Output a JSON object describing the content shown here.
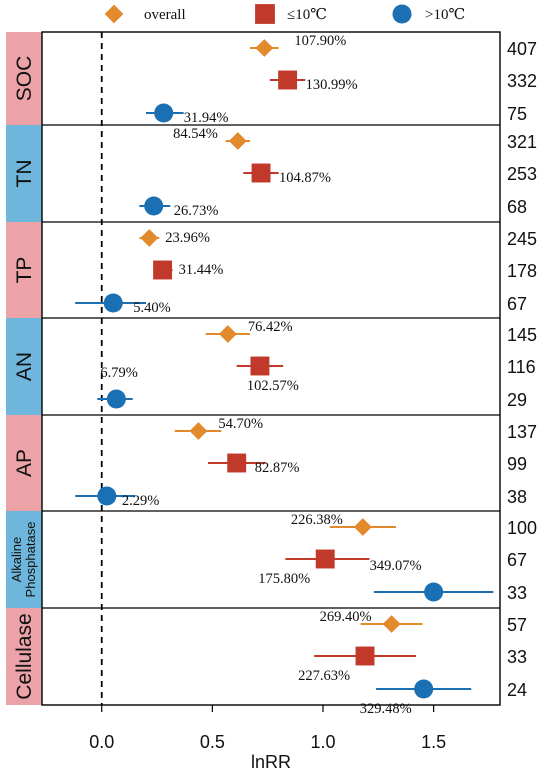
{
  "chart_data": {
    "type": "scatter",
    "xlabel": "lnRR",
    "xlim": [
      -0.27,
      1.8
    ],
    "x_ticks": [
      "0.0",
      "0.5",
      "1.0",
      "1.5"
    ],
    "x_tick_values": [
      0,
      0.5,
      1.0,
      1.5
    ],
    "legend": [
      {
        "name": "overall",
        "marker": "diamond",
        "color": "#E38B2C"
      },
      {
        "name": "≤10℃",
        "marker": "square",
        "color": "#C0392B"
      },
      {
        "name": ">10℃",
        "marker": "circle",
        "color": "#1B6FB3"
      }
    ],
    "reference_line": 0,
    "groups": [
      {
        "label": "SOC",
        "band_color": "#EBA3A8",
        "label_lines": [
          "SOC"
        ],
        "rows": [
          {
            "series": "overall",
            "value": 0.735,
            "ci": [
              0.67,
              0.8
            ],
            "label": "107.90%",
            "n": "407"
          },
          {
            "series": "≤10℃",
            "value": 0.84,
            "ci": [
              0.76,
              0.92
            ],
            "label": "130.99%",
            "n": "332"
          },
          {
            "series": ">10℃",
            "value": 0.28,
            "ci": [
              0.2,
              0.37
            ],
            "label": "31.94%",
            "n": "75"
          }
        ]
      },
      {
        "label": "TN",
        "band_color": "#6FB6DC",
        "label_lines": [
          "TN"
        ],
        "rows": [
          {
            "series": "overall",
            "value": 0.615,
            "ci": [
              0.56,
              0.67
            ],
            "label": "84.54%",
            "n": "321"
          },
          {
            "series": "≤10℃",
            "value": 0.72,
            "ci": [
              0.64,
              0.8
            ],
            "label": "104.87%",
            "n": "253"
          },
          {
            "series": ">10℃",
            "value": 0.235,
            "ci": [
              0.17,
              0.31
            ],
            "label": "26.73%",
            "n": "68"
          }
        ]
      },
      {
        "label": "TP",
        "band_color": "#EBA3A8",
        "label_lines": [
          "TP"
        ],
        "rows": [
          {
            "series": "overall",
            "value": 0.215,
            "ci": [
              0.17,
              0.26
            ],
            "label": "23.96%",
            "n": "245"
          },
          {
            "series": "≤10℃",
            "value": 0.275,
            "ci": [
              0.24,
              0.32
            ],
            "label": "31.44%",
            "n": "178"
          },
          {
            "series": ">10℃",
            "value": 0.052,
            "ci": [
              -0.12,
              0.2
            ],
            "label": "5.40%",
            "n": "67"
          }
        ]
      },
      {
        "label": "AN",
        "band_color": "#6FB6DC",
        "label_lines": [
          "AN"
        ],
        "rows": [
          {
            "series": "overall",
            "value": 0.57,
            "ci": [
              0.47,
              0.67
            ],
            "label": "76.42%",
            "n": "145"
          },
          {
            "series": "≤10℃",
            "value": 0.715,
            "ci": [
              0.61,
              0.82
            ],
            "label": "102.57%",
            "n": "116"
          },
          {
            "series": ">10℃",
            "value": 0.066,
            "ci": [
              -0.02,
              0.14
            ],
            "label": "6.79%",
            "n": "29"
          }
        ]
      },
      {
        "label": "AP",
        "band_color": "#EBA3A8",
        "label_lines": [
          "AP"
        ],
        "rows": [
          {
            "series": "overall",
            "value": 0.437,
            "ci": [
              0.33,
              0.54
            ],
            "label": "54.70%",
            "n": "137"
          },
          {
            "series": "≤10℃",
            "value": 0.61,
            "ci": [
              0.48,
              0.74
            ],
            "label": "82.87%",
            "n": "99"
          },
          {
            "series": ">10℃",
            "value": 0.023,
            "ci": [
              -0.12,
              0.15
            ],
            "label": "2.29%",
            "n": "38"
          }
        ]
      },
      {
        "label": "Alkaline Phosphatase",
        "band_color": "#6FB6DC",
        "label_lines": [
          "Alkaline",
          "Phosphatase"
        ],
        "rows": [
          {
            "series": "overall",
            "value": 1.18,
            "ci": [
              1.03,
              1.33
            ],
            "label": "226.38%",
            "n": "100"
          },
          {
            "series": "≤10℃",
            "value": 1.01,
            "ci": [
              0.83,
              1.21
            ],
            "label": "175.80%",
            "n": "67"
          },
          {
            "series": ">10℃",
            "value": 1.5,
            "ci": [
              1.23,
              1.77
            ],
            "label": "349.07%",
            "n": "33"
          }
        ]
      },
      {
        "label": "Cellulase",
        "band_color": "#EBA3A8",
        "label_lines": [
          "Cellulase"
        ],
        "rows": [
          {
            "series": "overall",
            "value": 1.31,
            "ci": [
              1.17,
              1.45
            ],
            "label": "269.40%",
            "n": "57"
          },
          {
            "series": "≤10℃",
            "value": 1.19,
            "ci": [
              0.96,
              1.42
            ],
            "label": "227.63%",
            "n": "33"
          },
          {
            "series": ">10℃",
            "value": 1.455,
            "ci": [
              1.24,
              1.67
            ],
            "label": "329.48%",
            "n": "24"
          }
        ]
      }
    ]
  }
}
